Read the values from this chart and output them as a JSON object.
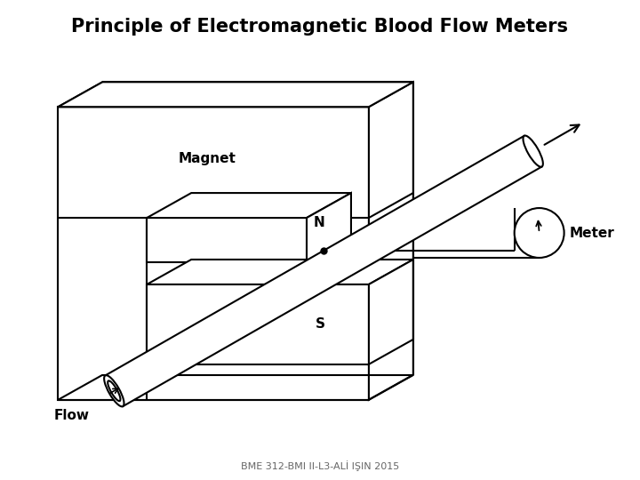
{
  "title": "Principle of Electromagnetic Blood Flow Meters",
  "title_fontsize": 15,
  "title_fontweight": "bold",
  "footer_text": "BME 312-BMI II-L3-ALİ IŞIN 2015",
  "footer_fontsize": 8,
  "label_magnet": "Magnet",
  "label_N": "N",
  "label_S": "S",
  "label_flow": "Flow",
  "label_meter": "Meter",
  "bg_color": "#ffffff",
  "line_color": "#000000",
  "figsize": [
    7.2,
    5.4
  ],
  "dpi": 100
}
